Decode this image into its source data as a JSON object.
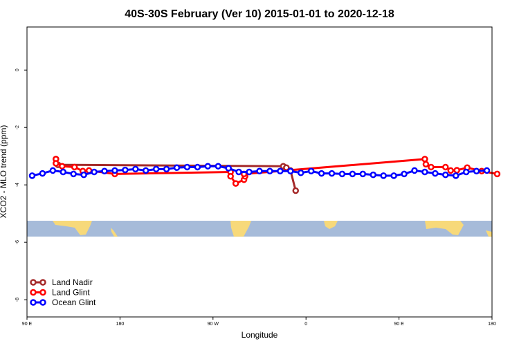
{
  "chart_data": {
    "type": "line",
    "title": "40S-30S February (Ver 10)   2015-01-01 to 2020-12-18",
    "xlabel": "Longitude",
    "ylabel": "XCO2 - MLO trend (ppm)",
    "xlim": [
      90,
      540
    ],
    "ylim": [
      -8.6,
      1.5
    ],
    "x_ticks": [
      {
        "value": 90,
        "label": "90 E"
      },
      {
        "value": 180,
        "label": "180"
      },
      {
        "value": 270,
        "label": "90 W"
      },
      {
        "value": 360,
        "label": "0"
      },
      {
        "value": 450,
        "label": "90 E"
      },
      {
        "value": 540,
        "label": "180"
      }
    ],
    "y_ticks": [
      {
        "value": 0,
        "label": "0"
      },
      {
        "value": -2,
        "label": "-2"
      },
      {
        "value": -4,
        "label": "-4"
      },
      {
        "value": -6,
        "label": "-6"
      },
      {
        "value": -8,
        "label": "-8"
      }
    ],
    "map_band": {
      "y_top": -5.25,
      "y_bottom": -5.8,
      "ocean_color": "#a6bbd9",
      "land_color": "#f7d97a"
    },
    "legend_position": "bottom-left",
    "series": [
      {
        "name": "Land Nadir",
        "color": "#a52a2a",
        "points": [
          [
            118,
            -3.1
          ],
          [
            120,
            -3.3
          ],
          [
            338,
            -3.35
          ],
          [
            341,
            -3.4
          ],
          [
            345,
            -3.5
          ],
          [
            350,
            -4.2
          ]
        ]
      },
      {
        "name": "Land Glint",
        "color": "#ff0000",
        "points": [
          [
            118,
            -3.1
          ],
          [
            118,
            -3.25
          ],
          [
            124,
            -3.35
          ],
          [
            136,
            -3.38
          ],
          [
            144,
            -3.52
          ],
          [
            150,
            -3.5
          ],
          [
            175,
            -3.62
          ],
          [
            287,
            -3.55
          ],
          [
            287,
            -3.7
          ],
          [
            292,
            -3.95
          ],
          [
            300,
            -3.82
          ],
          [
            301,
            -3.7
          ],
          [
            300,
            -3.62
          ],
          [
            475,
            -3.1
          ],
          [
            476,
            -3.28
          ],
          [
            481,
            -3.38
          ],
          [
            495,
            -3.38
          ],
          [
            500,
            -3.5
          ],
          [
            506,
            -3.49
          ],
          [
            516,
            -3.4
          ],
          [
            530,
            -3.52
          ],
          [
            545,
            -3.62
          ]
        ]
      },
      {
        "name": "Ocean Glint",
        "color": "#0000ff",
        "points": [
          [
            95,
            -3.68
          ],
          [
            105,
            -3.6
          ],
          [
            115,
            -3.5
          ],
          [
            125,
            -3.55
          ],
          [
            135,
            -3.62
          ],
          [
            145,
            -3.65
          ],
          [
            155,
            -3.55
          ],
          [
            165,
            -3.52
          ],
          [
            175,
            -3.5
          ],
          [
            185,
            -3.48
          ],
          [
            195,
            -3.45
          ],
          [
            205,
            -3.5
          ],
          [
            215,
            -3.45
          ],
          [
            225,
            -3.45
          ],
          [
            235,
            -3.4
          ],
          [
            245,
            -3.38
          ],
          [
            255,
            -3.38
          ],
          [
            265,
            -3.35
          ],
          [
            275,
            -3.35
          ],
          [
            285,
            -3.42
          ],
          [
            295,
            -3.55
          ],
          [
            305,
            -3.55
          ],
          [
            315,
            -3.52
          ],
          [
            325,
            -3.52
          ],
          [
            335,
            -3.52
          ],
          [
            345,
            -3.52
          ],
          [
            355,
            -3.58
          ],
          [
            365,
            -3.52
          ],
          [
            375,
            -3.6
          ],
          [
            385,
            -3.6
          ],
          [
            395,
            -3.62
          ],
          [
            405,
            -3.62
          ],
          [
            415,
            -3.62
          ],
          [
            425,
            -3.65
          ],
          [
            435,
            -3.68
          ],
          [
            445,
            -3.68
          ],
          [
            455,
            -3.62
          ],
          [
            465,
            -3.5
          ],
          [
            475,
            -3.55
          ],
          [
            485,
            -3.6
          ],
          [
            495,
            -3.65
          ],
          [
            505,
            -3.68
          ],
          [
            515,
            -3.55
          ],
          [
            525,
            -3.52
          ],
          [
            535,
            -3.5
          ]
        ]
      }
    ]
  }
}
